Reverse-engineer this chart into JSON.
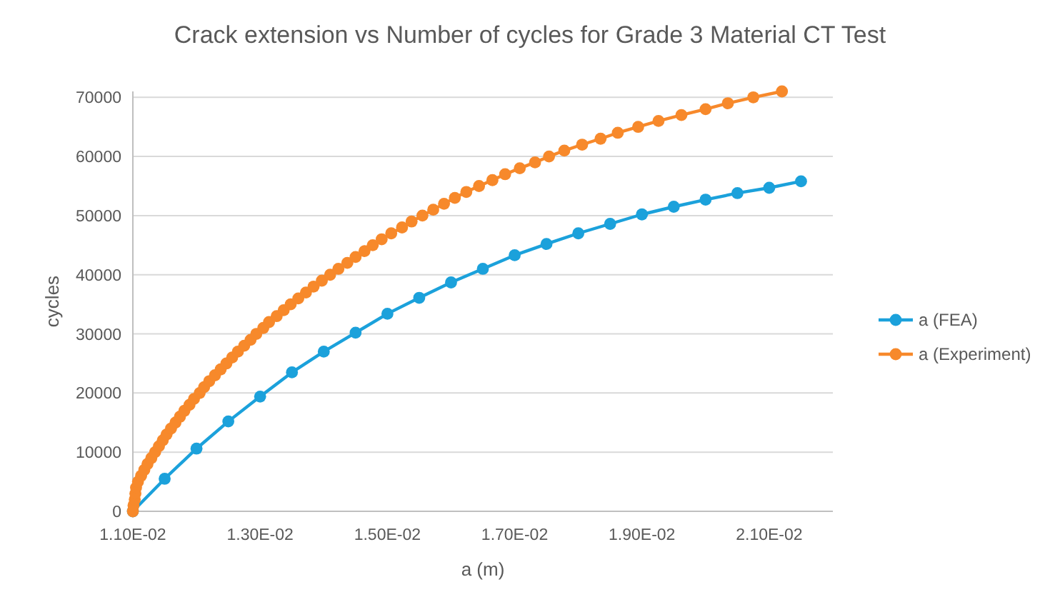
{
  "chart_data": {
    "type": "line",
    "title": "Crack extension vs Number of cycles for Grade 3 Material CT Test",
    "xlabel": "a (m)",
    "ylabel": "cycles",
    "xlim": [
      0.011,
      0.022
    ],
    "xticks": [
      {
        "value": 0.011,
        "label": "1.10E-02"
      },
      {
        "value": 0.013,
        "label": "1.30E-02"
      },
      {
        "value": 0.015,
        "label": "1.50E-02"
      },
      {
        "value": 0.017,
        "label": "1.70E-02"
      },
      {
        "value": 0.019,
        "label": "1.90E-02"
      },
      {
        "value": 0.021,
        "label": "2.10E-02"
      }
    ],
    "ylim": [
      0,
      71000
    ],
    "yticks": [
      0,
      10000,
      20000,
      30000,
      40000,
      50000,
      60000,
      70000
    ],
    "grid": "y",
    "legend": "right",
    "marker": "circle",
    "line_style": "solid",
    "series": [
      {
        "name": "a (FEA)",
        "color": "#1ba1db",
        "x": [
          0.011,
          0.0115,
          0.012,
          0.0125,
          0.013,
          0.0135,
          0.014,
          0.0145,
          0.015,
          0.0155,
          0.016,
          0.0165,
          0.017,
          0.0175,
          0.018,
          0.0185,
          0.019,
          0.0195,
          0.02,
          0.0205,
          0.021,
          0.0215
        ],
        "values": [
          0,
          5500,
          10600,
          15200,
          19400,
          23500,
          27000,
          30200,
          33400,
          36100,
          38700,
          41000,
          43300,
          45200,
          47000,
          48600,
          50200,
          51500,
          52700,
          53800,
          54700,
          55800
        ]
      },
      {
        "name": "a (Experiment)",
        "color": "#f7892b",
        "x": [
          0.011,
          0.01101,
          0.01103,
          0.01104,
          0.01105,
          0.01108,
          0.01113,
          0.01118,
          0.01123,
          0.01129,
          0.01135,
          0.01141,
          0.01147,
          0.01153,
          0.0116,
          0.01167,
          0.01174,
          0.01181,
          0.01189,
          0.01196,
          0.01205,
          0.01212,
          0.0122,
          0.01229,
          0.01238,
          0.01247,
          0.01256,
          0.01265,
          0.01275,
          0.01285,
          0.01294,
          0.01305,
          0.01314,
          0.01326,
          0.01337,
          0.01348,
          0.0136,
          0.01372,
          0.01384,
          0.01397,
          0.0141,
          0.01423,
          0.01437,
          0.0145,
          0.01464,
          0.01477,
          0.01491,
          0.01506,
          0.01523,
          0.01538,
          0.01555,
          0.01572,
          0.01589,
          0.01606,
          0.01624,
          0.01644,
          0.01665,
          0.01685,
          0.01708,
          0.01732,
          0.01754,
          0.01778,
          0.01806,
          0.01835,
          0.01862,
          0.01894,
          0.01926,
          0.01962,
          0.02,
          0.02035,
          0.02075,
          0.0212
        ],
        "values": [
          0,
          1000,
          2000,
          3000,
          4000,
          5000,
          6000,
          7000,
          8000,
          9000,
          10000,
          11000,
          12000,
          13000,
          14000,
          15000,
          16000,
          17000,
          18000,
          19000,
          20000,
          21000,
          22000,
          23000,
          24000,
          25000,
          26000,
          27000,
          28000,
          29000,
          30000,
          31000,
          32000,
          33000,
          34000,
          35000,
          36000,
          37000,
          38000,
          39000,
          40000,
          41000,
          42000,
          43000,
          44000,
          45000,
          46000,
          47000,
          48000,
          49000,
          50000,
          51000,
          52000,
          53000,
          54000,
          55000,
          56000,
          57000,
          58000,
          59000,
          60000,
          61000,
          62000,
          63000,
          64000,
          65000,
          66000,
          67000,
          68000,
          69000,
          70000,
          71000
        ]
      }
    ]
  }
}
